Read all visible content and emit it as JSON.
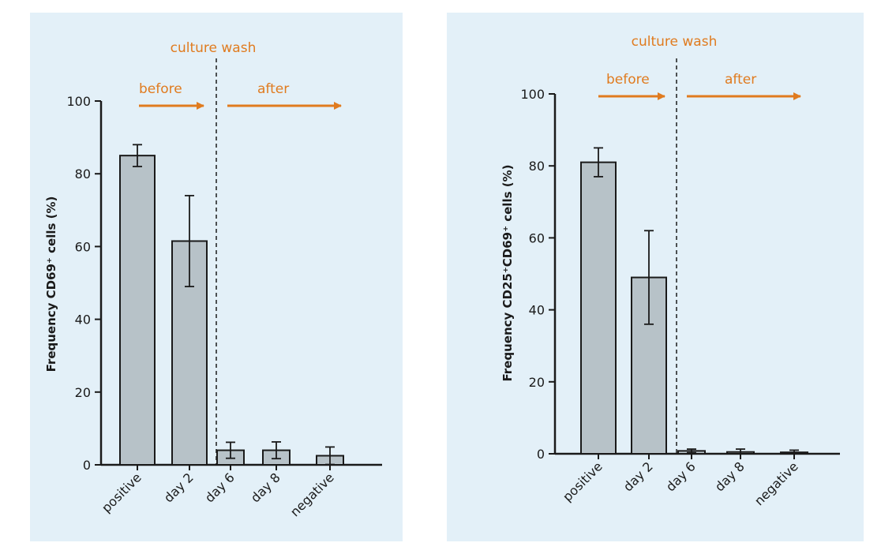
{
  "colors": {
    "panel_bg": "#e3f0f8",
    "bar_fill": "#b7c2c8",
    "bar_stroke": "#1a1a1a",
    "annotation": "#e07b1f",
    "axis": "#1a1a1a"
  },
  "chart_data": [
    {
      "type": "bar",
      "title": "",
      "xlabel": "",
      "ylabel": "Frequency CD69⁺ cells (%)",
      "ylim": [
        0,
        100
      ],
      "yticks": [
        0,
        20,
        40,
        60,
        80,
        100
      ],
      "categories": [
        "positive",
        "day 2",
        "day 6",
        "day 8",
        "negative"
      ],
      "values": [
        85,
        61.5,
        4,
        4,
        2.5
      ],
      "error": [
        3,
        12.5,
        2.2,
        2.3,
        2.4
      ],
      "annotations": {
        "divider_label": "culture wash",
        "before_label": "before",
        "after_label": "after"
      },
      "grid": false
    },
    {
      "type": "bar",
      "title": "",
      "xlabel": "",
      "ylabel": "Frequency CD25⁺CD69⁺ cells (%)",
      "ylim": [
        0,
        100
      ],
      "yticks": [
        0,
        20,
        40,
        60,
        80,
        100
      ],
      "categories": [
        "positive",
        "day 2",
        "day 6",
        "day 8",
        "negative"
      ],
      "values": [
        81,
        49,
        0.8,
        0.5,
        0.4
      ],
      "error": [
        4,
        13,
        0.5,
        0.8,
        0.6
      ],
      "annotations": {
        "divider_label": "culture wash",
        "before_label": "before",
        "after_label": "after"
      },
      "grid": false
    }
  ]
}
